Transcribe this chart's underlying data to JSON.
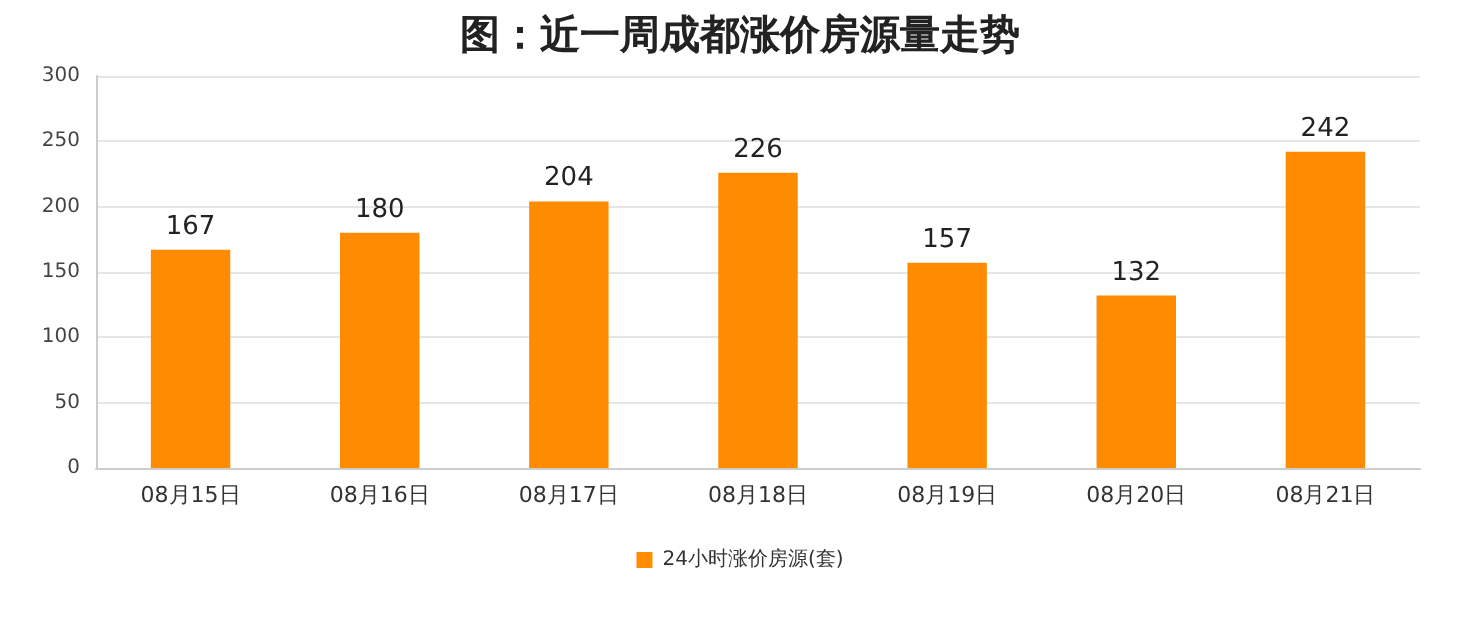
{
  "chart_data": {
    "type": "bar",
    "title": "图：近一周成都涨价房源量走势",
    "categories": [
      "08月15日",
      "08月16日",
      "08月17日",
      "08月18日",
      "08月19日",
      "08月20日",
      "08月21日"
    ],
    "series": [
      {
        "name": "24小时涨价房源(套)",
        "color": "#ff8c00",
        "values": [
          167,
          180,
          204,
          226,
          157,
          132,
          242
        ]
      }
    ],
    "ylim": [
      0,
      300
    ],
    "yticks": [
      0,
      50,
      100,
      150,
      200,
      250,
      300
    ],
    "grid": "y",
    "legend": "bottom",
    "data_labels": true
  }
}
